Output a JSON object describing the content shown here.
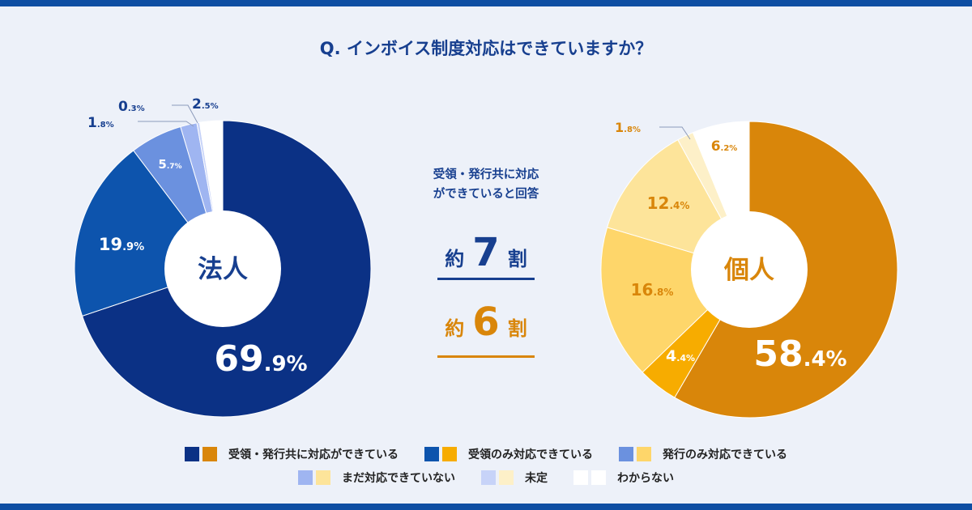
{
  "title": "Q. インボイス制度対応はできていますか？",
  "center_text": {
    "sub_line1": "受領・発行共に対応",
    "sub_line2": "ができていると回答",
    "corp_prefix": "約",
    "corp_number": "7",
    "corp_suffix": "割",
    "indiv_prefix": "約",
    "indiv_number": "6",
    "indiv_suffix": "割"
  },
  "legend": [
    {
      "label": "受領・発行共に対応ができている",
      "corp_color": "#0b3185",
      "indiv_color": "#d9860a"
    },
    {
      "label": "受領のみ対応できている",
      "corp_color": "#0d54ad",
      "indiv_color": "#f7ac00"
    },
    {
      "label": "発行のみ対応できている",
      "corp_color": "#6b91df",
      "indiv_color": "#fed66a"
    },
    {
      "label": "まだ対応できていない",
      "corp_color": "#9fb5f1",
      "indiv_color": "#fde49a"
    },
    {
      "label": "未定",
      "corp_color": "#c7d3f8",
      "indiv_color": "#fdf0c8"
    },
    {
      "label": "わからない",
      "corp_color": "#ffffff",
      "indiv_color": "#ffffff"
    }
  ],
  "chart_data": [
    {
      "type": "pie",
      "title": "法人",
      "categories": [
        "受領・発行共に対応ができている",
        "受領のみ対応できている",
        "発行のみ対応できている",
        "まだ対応できていない",
        "未定",
        "わからない"
      ],
      "values": [
        69.9,
        19.9,
        5.7,
        1.8,
        0.3,
        2.5
      ],
      "labels": [
        "69.9%",
        "19.9%",
        "5.7%",
        "1.8%",
        "0.3%",
        "2.5%"
      ],
      "colors": [
        "#0b3185",
        "#0d54ad",
        "#6b91df",
        "#9fb5f1",
        "#c7d3f8",
        "#ffffff"
      ],
      "label_colors": [
        "#ffffff",
        "#ffffff",
        "#ffffff",
        "#173f8f",
        "#173f8f",
        "#173f8f"
      ],
      "center_label": "法人",
      "center_color": "#173f8f"
    },
    {
      "type": "pie",
      "title": "個人",
      "categories": [
        "受領・発行共に対応ができている",
        "受領のみ対応できている",
        "発行のみ対応できている",
        "まだ対応できていない",
        "未定",
        "わからない"
      ],
      "values": [
        58.4,
        4.4,
        16.8,
        12.4,
        1.8,
        6.2
      ],
      "labels": [
        "58.4%",
        "4.4%",
        "16.8%",
        "12.4%",
        "1.8%",
        "6.2%"
      ],
      "colors": [
        "#d9860a",
        "#f7ac00",
        "#fed66a",
        "#fde49a",
        "#fdf0c8",
        "#ffffff"
      ],
      "label_colors": [
        "#ffffff",
        "#ffffff",
        "#d9860a",
        "#d9860a",
        "#d9860a",
        "#d9860a"
      ],
      "center_label": "個人",
      "center_color": "#d9860a"
    }
  ]
}
